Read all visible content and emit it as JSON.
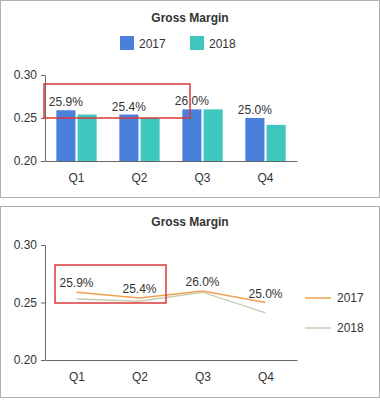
{
  "chart_data": [
    {
      "type": "bar",
      "title": "Gross Margin",
      "categories": [
        "Q1",
        "Q2",
        "Q3",
        "Q4"
      ],
      "series": [
        {
          "name": "2017",
          "color": "#4a7fdc",
          "values": [
            0.259,
            0.254,
            0.26,
            0.25
          ],
          "value_labels": [
            "25.9%",
            "25.4%",
            "26.0%",
            "25.0%"
          ],
          "data_labels": true
        },
        {
          "name": "2018",
          "color": "#3ec7bf",
          "values": [
            0.254,
            0.25,
            0.26,
            0.242
          ]
        }
      ],
      "ylim": [
        0.2,
        0.3
      ],
      "yticks": [
        {
          "value": 0.2,
          "label": "0.20"
        },
        {
          "value": 0.25,
          "label": "0.25"
        },
        {
          "value": 0.3,
          "label": "0.30"
        }
      ],
      "legend": "top"
    },
    {
      "type": "line",
      "title": "Gross Margin",
      "categories": [
        "Q1",
        "Q2",
        "Q3",
        "Q4"
      ],
      "series": [
        {
          "name": "2017",
          "color": "#f0a050",
          "values": [
            0.259,
            0.254,
            0.26,
            0.25
          ],
          "value_labels": [
            "25.9%",
            "25.4%",
            "26.0%",
            "25.0%"
          ],
          "data_labels": true
        },
        {
          "name": "2018",
          "color": "#c8ccb0",
          "values": [
            0.253,
            0.251,
            0.259,
            0.241
          ]
        }
      ],
      "ylim": [
        0.2,
        0.3
      ],
      "yticks": [
        {
          "value": 0.2,
          "label": "0.20"
        },
        {
          "value": 0.25,
          "label": "0.25"
        },
        {
          "value": 0.3,
          "label": "0.30"
        }
      ],
      "legend": "right"
    }
  ]
}
